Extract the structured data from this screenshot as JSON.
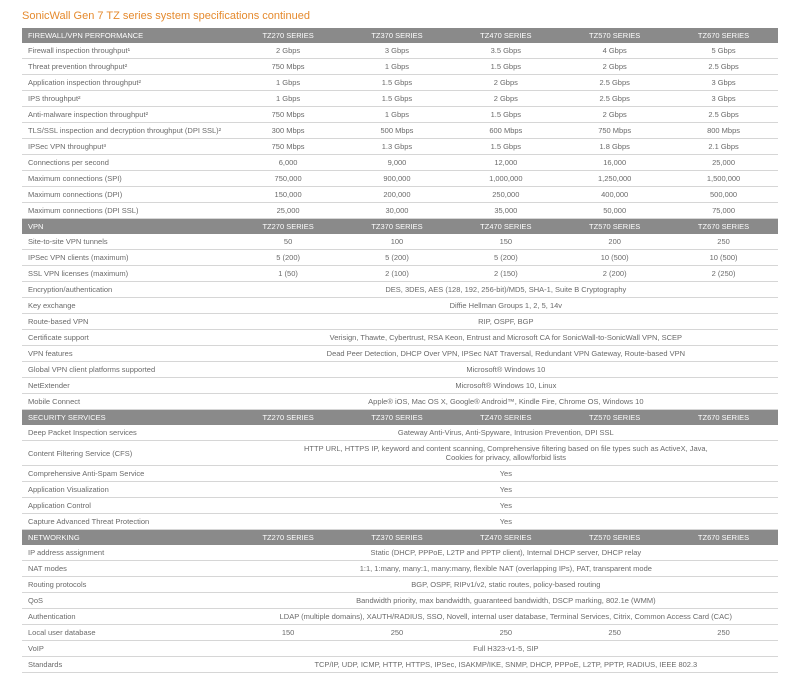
{
  "title": "SonicWall Gen 7 TZ series system specifications continued",
  "series_headers": [
    "TZ270 SERIES",
    "TZ370 SERIES",
    "TZ470 SERIES",
    "TZ570 SERIES",
    "TZ670 SERIES"
  ],
  "sections": [
    {
      "name": "FIREWALL/VPN PERFORMANCE",
      "show_series": true,
      "rows": [
        {
          "label": "Firewall inspection throughput¹",
          "vals": [
            "2 Gbps",
            "3 Gbps",
            "3.5 Gbps",
            "4 Gbps",
            "5 Gbps"
          ]
        },
        {
          "label": "Threat prevention throughput²",
          "vals": [
            "750 Mbps",
            "1 Gbps",
            "1.5 Gbps",
            "2 Gbps",
            "2.5 Gbps"
          ]
        },
        {
          "label": "Application inspection throughput²",
          "vals": [
            "1 Gbps",
            "1.5 Gbps",
            "2 Gbps",
            "2.5 Gbps",
            "3 Gbps"
          ]
        },
        {
          "label": "IPS throughput²",
          "vals": [
            "1 Gbps",
            "1.5 Gbps",
            "2 Gbps",
            "2.5 Gbps",
            "3 Gbps"
          ]
        },
        {
          "label": "Anti-malware inspection throughput²",
          "vals": [
            "750 Mbps",
            "1 Gbps",
            "1.5 Gbps",
            "2 Gbps",
            "2.5 Gbps"
          ]
        },
        {
          "label": "TLS/SSL inspection and decryption throughput (DPI SSL)²",
          "vals": [
            "300 Mbps",
            "500 Mbps",
            "600 Mbps",
            "750 Mbps",
            "800 Mbps"
          ]
        },
        {
          "label": "IPSec VPN throughput³",
          "vals": [
            "750 Mbps",
            "1.3 Gbps",
            "1.5 Gbps",
            "1.8 Gbps",
            "2.1 Gbps"
          ]
        },
        {
          "label": "Connections per second",
          "vals": [
            "6,000",
            "9,000",
            "12,000",
            "16,000",
            "25,000"
          ]
        },
        {
          "label": "Maximum connections (SPI)",
          "vals": [
            "750,000",
            "900,000",
            "1,000,000",
            "1,250,000",
            "1,500,000"
          ]
        },
        {
          "label": "Maximum connections (DPI)",
          "vals": [
            "150,000",
            "200,000",
            "250,000",
            "400,000",
            "500,000"
          ]
        },
        {
          "label": "Maximum connections (DPI SSL)",
          "vals": [
            "25,000",
            "30,000",
            "35,000",
            "50,000",
            "75,000"
          ]
        }
      ]
    },
    {
      "name": "VPN",
      "show_series": true,
      "rows": [
        {
          "label": "Site-to-site VPN tunnels",
          "vals": [
            "50",
            "100",
            "150",
            "200",
            "250"
          ]
        },
        {
          "label": "IPSec VPN clients (maximum)",
          "vals": [
            "5 (200)",
            "5 (200)",
            "5 (200)",
            "10 (500)",
            "10 (500)"
          ]
        },
        {
          "label": "SSL VPN licenses (maximum)",
          "vals": [
            "1 (50)",
            "2 (100)",
            "2 (150)",
            "2 (200)",
            "2 (250)"
          ]
        },
        {
          "label": "Encryption/authentication",
          "span": "DES, 3DES, AES (128, 192, 256-bit)/MD5, SHA-1, Suite B Cryptography"
        },
        {
          "label": "Key exchange",
          "span": "Diffie Hellman Groups 1, 2, 5, 14v"
        },
        {
          "label": "Route-based VPN",
          "span": "RIP, OSPF, BGP"
        },
        {
          "label": "Certificate support",
          "span": "Verisign, Thawte, Cybertrust, RSA Keon, Entrust and Microsoft CA for SonicWall-to-SonicWall VPN, SCEP"
        },
        {
          "label": "VPN features",
          "span": "Dead Peer Detection, DHCP Over VPN, IPSec NAT Traversal, Redundant VPN Gateway, Route-based VPN"
        },
        {
          "label": "Global VPN client platforms supported",
          "span": "Microsoft® Windows 10"
        },
        {
          "label": "NetExtender",
          "span": "Microsoft® Windows 10, Linux"
        },
        {
          "label": "Mobile Connect",
          "span": "Apple® iOS, Mac OS X, Google® Android™, Kindle Fire, Chrome OS, Windows 10"
        }
      ]
    },
    {
      "name": "SECURITY SERVICES",
      "show_series": true,
      "rows": [
        {
          "label": "Deep Packet Inspection services",
          "span": "Gateway Anti-Virus, Anti-Spyware, Intrusion Prevention, DPI SSL"
        },
        {
          "label": "Content Filtering Service (CFS)",
          "span": "HTTP URL, HTTPS IP, keyword and content scanning, Comprehensive filtering based on file types such as ActiveX, Java,\nCookies for privacy, allow/forbid lists"
        },
        {
          "label": "Comprehensive Anti-Spam Service",
          "span": "Yes"
        },
        {
          "label": "Application Visualization",
          "span": "Yes"
        },
        {
          "label": "Application Control",
          "span": "Yes"
        },
        {
          "label": "Capture Advanced Threat Protection",
          "span": "Yes"
        }
      ]
    },
    {
      "name": "NETWORKING",
      "show_series": true,
      "rows": [
        {
          "label": "IP address assignment",
          "span": "Static (DHCP, PPPoE, L2TP and PPTP client), Internal DHCP server, DHCP relay"
        },
        {
          "label": "NAT modes",
          "span": "1:1, 1:many, many:1, many:many, flexible NAT (overlapping IPs), PAT, transparent mode"
        },
        {
          "label": "Routing protocols",
          "span": "BGP, OSPF, RIPv1/v2, static routes, policy-based routing"
        },
        {
          "label": "QoS",
          "span": "Bandwidth priority, max bandwidth, guaranteed bandwidth, DSCP marking, 802.1e (WMM)"
        },
        {
          "label": "Authentication",
          "span": "LDAP (multiple domains), XAUTH/RADIUS, SSO, Novell, internal user database, Terminal Services, Citrix, Common Access Card (CAC)"
        },
        {
          "label": "Local user database",
          "vals": [
            "150",
            "250",
            "250",
            "250",
            "250"
          ]
        },
        {
          "label": "VoIP",
          "span": "Full H323-v1-5, SIP"
        },
        {
          "label": "Standards",
          "span": "TCP/IP, UDP, ICMP, HTTP, HTTPS, IPSec, ISAKMP/IKE, SNMP, DHCP, PPPoE, L2TP, PPTP, RADIUS, IEEE 802.3"
        }
      ]
    }
  ],
  "colors": {
    "title": "#e58a2e",
    "section_bg": "#8a8a8a",
    "section_fg": "#ffffff",
    "row_border": "#d6d6d6",
    "text": "#6a6a6a",
    "background": "#ffffff"
  }
}
